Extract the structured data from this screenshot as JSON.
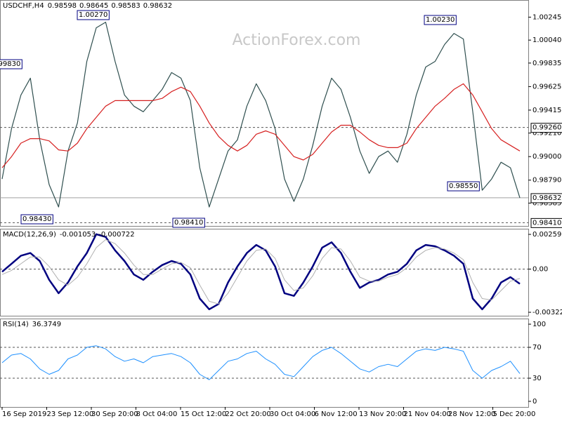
{
  "watermark": "ActionForex.com",
  "chart_data": [
    {
      "type": "line",
      "title": "USDCHF,H4",
      "header_values": [
        0.98598,
        0.98645,
        0.98583,
        0.98632
      ],
      "ylim": [
        0.98381,
        1.00398
      ],
      "yticks": [
        1.00245,
        {
          "value": 1.0004,
          "label": "1.00040"
        },
        0.99835,
        0.99625,
        0.99415,
        {
          "value": 0.9921,
          "label": "0.99210"
        },
        {
          "value": 0.99,
          "label": "0.99000"
        },
        {
          "value": 0.9879,
          "label": "0.98790"
        },
        0.98585
      ],
      "series": [
        {
          "color": "#2f4f4f",
          "values": [
            0.988,
            0.9925,
            0.9955,
            0.997,
            0.9915,
            0.9875,
            0.9855,
            0.9905,
            0.993,
            0.9985,
            1.0015,
            1.002,
            0.9985,
            0.9955,
            0.9945,
            0.994,
            0.995,
            0.996,
            0.9975,
            0.997,
            0.995,
            0.989,
            0.9855,
            0.988,
            0.9905,
            0.9915,
            0.9945,
            0.9965,
            0.995,
            0.9925,
            0.988,
            0.986,
            0.988,
            0.991,
            0.9945,
            0.997,
            0.996,
            0.9935,
            0.9905,
            0.9885,
            0.99,
            0.9905,
            0.9895,
            0.992,
            0.9955,
            0.998,
            0.9985,
            1.0,
            1.001,
            1.0005,
            0.994,
            0.987,
            0.988,
            0.9895,
            0.989,
            0.98632
          ]
        },
        {
          "color": "#d62020",
          "values": [
            0.989,
            0.99,
            0.9912,
            0.9916,
            0.9916,
            0.9914,
            0.9906,
            0.9905,
            0.9912,
            0.9925,
            0.9935,
            0.9945,
            0.995,
            0.995,
            0.995,
            0.995,
            0.995,
            0.9952,
            0.9958,
            0.9962,
            0.9958,
            0.9945,
            0.993,
            0.9918,
            0.991,
            0.9905,
            0.991,
            0.992,
            0.9923,
            0.992,
            0.991,
            0.99,
            0.9897,
            0.9902,
            0.9912,
            0.9922,
            0.9928,
            0.9928,
            0.9922,
            0.9915,
            0.991,
            0.9908,
            0.9908,
            0.9912,
            0.9925,
            0.9935,
            0.9945,
            0.9952,
            0.996,
            0.9965,
            0.9955,
            0.994,
            0.9925,
            0.9915,
            0.991,
            0.9905
          ]
        }
      ],
      "current": {
        "value": 0.98632,
        "label": "0.98632"
      },
      "levels": [
        {
          "value": 0.9926,
          "label": "0.99260"
        },
        {
          "value": 0.9841,
          "label": "0.98410"
        }
      ],
      "annotations": [
        {
          "value": 1.0027,
          "label": "1.00270"
        },
        {
          "value": 1.0023,
          "label": "1.00230"
        },
        {
          "value": 0.9983,
          "label": "0.99830"
        },
        {
          "value": 0.9843,
          "label": "0.98430"
        },
        {
          "value": 0.9841,
          "label": "0.98410"
        },
        {
          "value": 0.9855,
          "label": "0.98550"
        }
      ]
    },
    {
      "type": "line",
      "title": "MACD(12,26,9)",
      "header_values": [
        -0.001053,
        -0.000722
      ],
      "ylim": [
        -0.00348,
        0.00301
      ],
      "yticks": [
        0.00259,
        {
          "value": 0,
          "label": "0.00"
        },
        -0.003221
      ],
      "levels": [
        0
      ],
      "series": [
        {
          "color": "#000080",
          "width": 2.5,
          "values": [
            -0.0002,
            0.0004,
            0.001,
            0.0012,
            0.0006,
            -0.0008,
            -0.0018,
            -0.001,
            0.0002,
            0.0012,
            0.0026,
            0.0024,
            0.0014,
            0.0006,
            -0.0004,
            -0.0008,
            -0.0002,
            0.0003,
            0.0006,
            0.0004,
            -0.0004,
            -0.0022,
            -0.003,
            -0.0026,
            -0.001,
            0.0002,
            0.0012,
            0.0018,
            0.0014,
            0.0002,
            -0.0018,
            -0.002,
            -0.001,
            0.0002,
            0.0016,
            0.002,
            0.0012,
            -0.0002,
            -0.0014,
            -0.001,
            -0.0008,
            -0.0004,
            -0.0002,
            0.0004,
            0.0014,
            0.0018,
            0.0017,
            0.0014,
            0.001,
            0.0004,
            -0.0022,
            -0.003,
            -0.0022,
            -0.001,
            -0.0006,
            -0.0011
          ]
        },
        {
          "color": "#b0b0b0",
          "width": 1,
          "values": [
            -0.0004,
            -0.0001,
            0.0004,
            0.0009,
            0.0009,
            0.0002,
            -0.0008,
            -0.0012,
            -0.0006,
            0.0004,
            0.0016,
            0.0022,
            0.0019,
            0.0012,
            0.0003,
            -0.0004,
            -0.0004,
            0.0,
            0.0004,
            0.0005,
            0.0001,
            -0.0012,
            -0.0024,
            -0.0026,
            -0.0018,
            -0.0006,
            0.0006,
            0.0014,
            0.0015,
            0.0008,
            -0.0008,
            -0.0016,
            -0.0014,
            -0.0005,
            0.0008,
            0.0016,
            0.0015,
            0.0006,
            -0.0006,
            -0.0009,
            -0.0009,
            -0.0006,
            -0.0004,
            0.0001,
            0.0009,
            0.0014,
            0.0016,
            0.0015,
            0.0012,
            0.0007,
            -0.001,
            -0.0022,
            -0.0023,
            -0.0016,
            -0.0009,
            -0.0007
          ]
        }
      ]
    },
    {
      "type": "line",
      "title": "RSI(14)",
      "header_values": [
        36.3749
      ],
      "ylim": [
        -7.3,
        107.3
      ],
      "yticks": [
        100,
        70,
        30,
        0
      ],
      "levels": [
        70,
        30
      ],
      "series": [
        {
          "color": "#1e90ff",
          "width": 1,
          "values": [
            50,
            60,
            62,
            55,
            42,
            35,
            40,
            55,
            60,
            70,
            72,
            68,
            58,
            52,
            55,
            50,
            58,
            60,
            62,
            58,
            50,
            35,
            28,
            40,
            52,
            55,
            62,
            65,
            55,
            48,
            35,
            32,
            45,
            58,
            66,
            70,
            62,
            52,
            42,
            38,
            45,
            48,
            45,
            55,
            65,
            68,
            66,
            70,
            68,
            65,
            40,
            30,
            40,
            45,
            52,
            36
          ]
        }
      ],
      "x_labels": [
        "16 Sep 2019",
        "23 Sep 12:00",
        "30 Sep 20:00",
        "8 Oct 04:00",
        "15 Oct 12:00",
        "22 Oct 20:00",
        "30 Oct 04:00",
        "6 Nov 12:00",
        "13 Nov 20:00",
        "21 Nov 04:00",
        "28 Nov 12:00",
        "5 Dec 20:00"
      ]
    }
  ]
}
